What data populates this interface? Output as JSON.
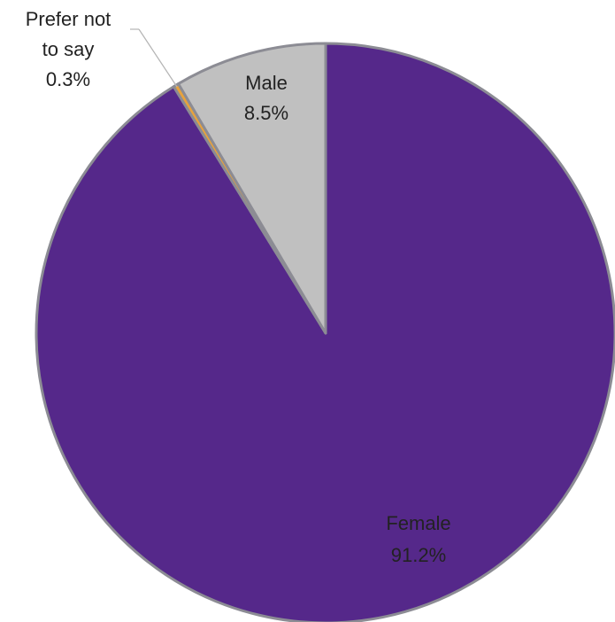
{
  "chart_data": {
    "type": "pie",
    "title": "",
    "slices": [
      {
        "name": "Female",
        "value": 91.2,
        "label": "91.2%",
        "color": "#55288A"
      },
      {
        "name": "Prefer not to say",
        "value": 0.3,
        "label": "0.3%",
        "color": "#E8A33C"
      },
      {
        "name": "Male",
        "value": 8.5,
        "label": "8.5%",
        "color": "#C0C0C0"
      }
    ],
    "label_texts": {
      "female_name": "Female",
      "female_pct": "91.2%",
      "male_name": "Male",
      "male_pct": "8.5%",
      "prefer_line1": "Prefer not",
      "prefer_line2": "to say",
      "prefer_pct": "0.3%"
    },
    "start_direction": "12 o'clock",
    "order": "clockwise",
    "edge_color": "#8C8C94",
    "leader_line_color": "#B4B4B4"
  }
}
